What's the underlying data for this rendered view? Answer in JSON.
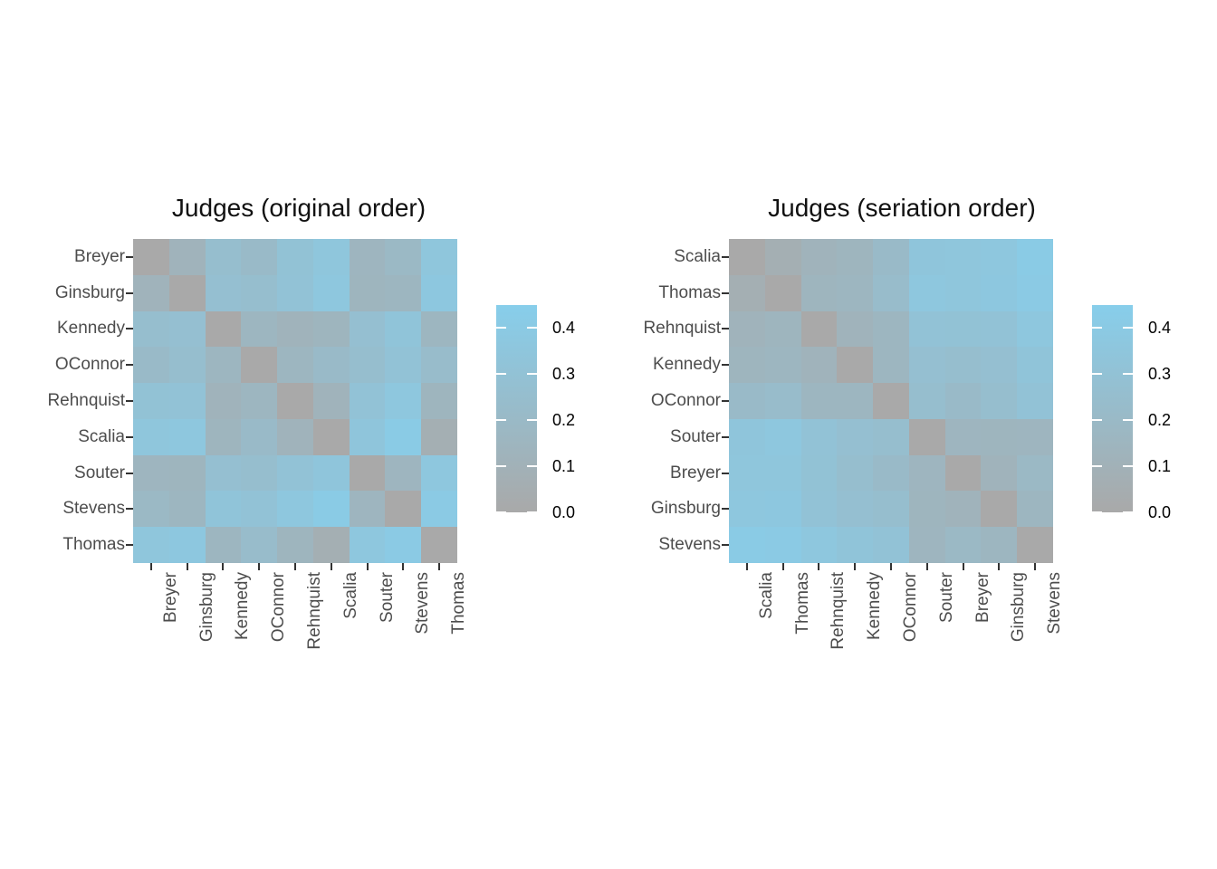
{
  "chart_data": {
    "type": "heatmap",
    "labels_original_order": [
      "Breyer",
      "Ginsburg",
      "Kennedy",
      "OConnor",
      "Rehnquist",
      "Scalia",
      "Souter",
      "Stevens",
      "Thomas"
    ],
    "values_original_order": [
      [
        0.0,
        0.12,
        0.25,
        0.21,
        0.3,
        0.35,
        0.15,
        0.19,
        0.35
      ],
      [
        0.12,
        0.0,
        0.27,
        0.25,
        0.31,
        0.36,
        0.14,
        0.16,
        0.37
      ],
      [
        0.25,
        0.27,
        0.0,
        0.16,
        0.12,
        0.14,
        0.27,
        0.33,
        0.16
      ],
      [
        0.21,
        0.25,
        0.16,
        0.0,
        0.16,
        0.21,
        0.25,
        0.31,
        0.23
      ],
      [
        0.3,
        0.31,
        0.12,
        0.16,
        0.0,
        0.12,
        0.31,
        0.36,
        0.14
      ],
      [
        0.35,
        0.36,
        0.14,
        0.21,
        0.12,
        0.0,
        0.34,
        0.41,
        0.07
      ],
      [
        0.15,
        0.14,
        0.27,
        0.25,
        0.31,
        0.34,
        0.0,
        0.15,
        0.36
      ],
      [
        0.19,
        0.16,
        0.33,
        0.31,
        0.36,
        0.41,
        0.15,
        0.0,
        0.4
      ],
      [
        0.35,
        0.37,
        0.16,
        0.23,
        0.14,
        0.07,
        0.36,
        0.4,
        0.0
      ]
    ],
    "panels": [
      {
        "title": "Judges (original order)",
        "row_order": [
          "Breyer",
          "Ginsburg",
          "Kennedy",
          "OConnor",
          "Rehnquist",
          "Scalia",
          "Souter",
          "Stevens",
          "Thomas"
        ],
        "col_order": [
          "Breyer",
          "Ginsburg",
          "Kennedy",
          "OConnor",
          "Rehnquist",
          "Scalia",
          "Souter",
          "Stevens",
          "Thomas"
        ]
      },
      {
        "title": "Judges (seriation order)",
        "row_order": [
          "Scalia",
          "Thomas",
          "Rehnquist",
          "Kennedy",
          "OConnor",
          "Souter",
          "Breyer",
          "Ginsburg",
          "Stevens"
        ],
        "col_order": [
          "Scalia",
          "Thomas",
          "Rehnquist",
          "Kennedy",
          "OConnor",
          "Souter",
          "Breyer",
          "Ginsburg",
          "Stevens"
        ]
      }
    ],
    "legend": {
      "tick_labels": [
        "0.4",
        "0.3",
        "0.2",
        "0.1",
        "0.0"
      ],
      "tick_values": [
        0.4,
        0.3,
        0.2,
        0.1,
        0.0
      ],
      "limits": [
        0,
        0.45
      ]
    },
    "colors": {
      "low": "#a9a9a9",
      "high": "#87ceeb",
      "background": "#ffffff",
      "axis_text": "#4d4d4d",
      "tick_mark": "#333333",
      "title_text": "#111111",
      "legend_text": "#000000"
    },
    "grid": false,
    "legend_position": "right"
  }
}
